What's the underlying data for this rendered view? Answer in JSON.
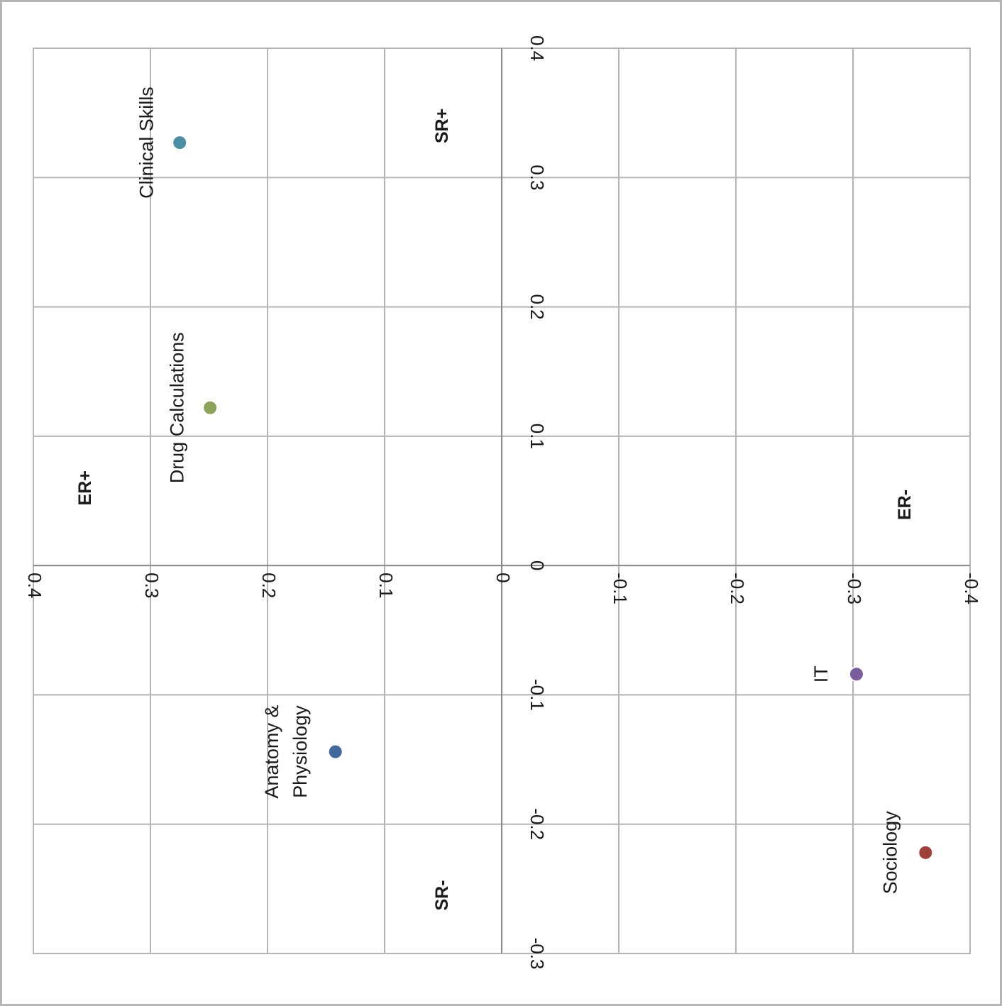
{
  "chart_data": {
    "type": "scatter",
    "orientation": "rotated 90° clockwise",
    "title": "",
    "x_axis": {
      "range": [
        -0.4,
        0.4
      ],
      "ticks": [
        "0.4",
        "0.3",
        "0.2",
        "0.1",
        "0",
        "-0.1",
        "-0.2",
        "-0.3",
        "-0.4"
      ],
      "tick_values": [
        0.4,
        0.3,
        0.2,
        0.1,
        0,
        -0.1,
        -0.2,
        -0.3,
        -0.4
      ]
    },
    "y_axis": {
      "range": [
        -0.3,
        0.4
      ],
      "ticks": [
        "0.4",
        "0.3",
        "0.2",
        "0.1",
        "0",
        "-0.1",
        "-0.2",
        "-0.3"
      ],
      "tick_values": [
        0.4,
        0.3,
        0.2,
        0.1,
        0,
        -0.1,
        -0.2,
        -0.3
      ]
    },
    "grid": true,
    "points": [
      {
        "label": "Clinical Skills",
        "x": 0.275,
        "y": 0.327,
        "color": "#4a8fa3"
      },
      {
        "label": "Drug Calculations",
        "x": 0.249,
        "y": 0.122,
        "color": "#8ca35a"
      },
      {
        "label": "Anatomy & Physiology",
        "x": 0.142,
        "y": -0.144,
        "color": "#3f6a99"
      },
      {
        "label": "IT",
        "x": -0.303,
        "y": -0.084,
        "color": "#7a5d9e"
      },
      {
        "label": "Sociology",
        "x": -0.362,
        "y": -0.222,
        "color": "#a0403a"
      }
    ],
    "quadrant_labels": [
      {
        "text": "SR+",
        "x": 0.05,
        "y": 0.34
      },
      {
        "text": "ER+",
        "x": 0.355,
        "y": 0.06
      },
      {
        "text": "ER-",
        "x": -0.345,
        "y": 0.047
      },
      {
        "text": "SR-",
        "x": 0.05,
        "y": -0.255
      }
    ]
  }
}
